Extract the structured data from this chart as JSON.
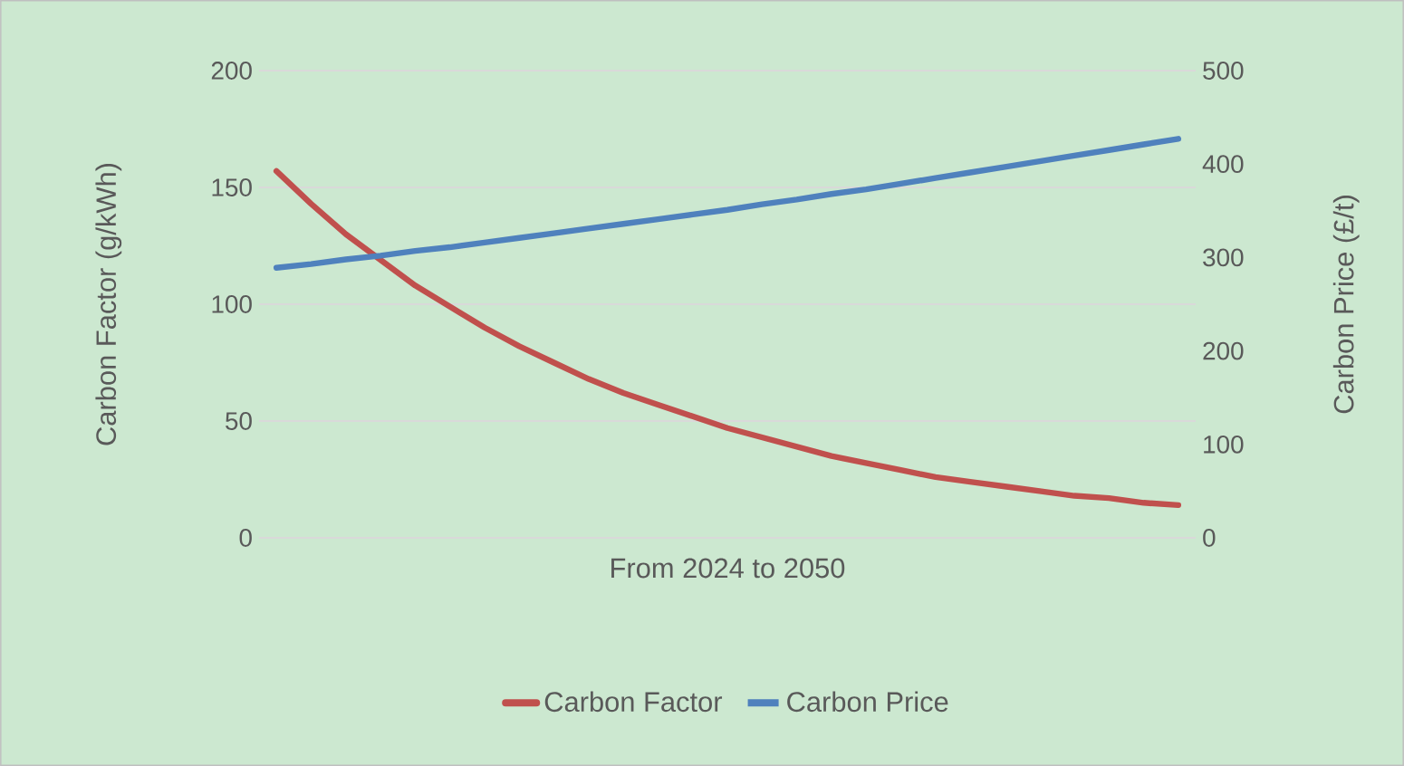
{
  "chart_data": {
    "type": "line",
    "xlabel": "From 2024 to 2050",
    "ylabel": "Carbon Factor (g/kWh)",
    "y2label": "Carbon Price (£/t)",
    "categories": [
      null,
      null,
      null,
      null,
      null,
      null,
      null,
      null,
      null,
      null,
      null,
      null,
      null,
      null,
      null,
      null,
      null,
      null,
      null,
      null,
      null,
      null,
      null,
      null,
      null,
      null,
      null
    ],
    "series": [
      {
        "name": "Carbon Factor",
        "color": "#c0504d",
        "values": [
          157,
          143,
          130,
          119,
          108,
          99,
          90,
          82,
          75,
          68,
          62,
          57,
          52,
          47,
          43,
          39,
          35,
          32,
          29,
          26,
          24,
          22,
          20,
          18,
          17,
          15,
          14
        ]
      },
      {
        "name": "Carbon Price",
        "color": "#4f81bd",
        "axis": "y2",
        "values": [
          289,
          293,
          298,
          302,
          307,
          311,
          316,
          321,
          326,
          331,
          336,
          341,
          346,
          351,
          357,
          362,
          368,
          373,
          379,
          385,
          391,
          397,
          403,
          409,
          415,
          421,
          427
        ]
      }
    ],
    "ylim": [
      0,
      200
    ],
    "yticks": [
      0,
      50,
      100,
      150,
      200
    ],
    "y2lim": [
      0,
      500
    ],
    "y2ticks": [
      0,
      100,
      200,
      300,
      400,
      500
    ],
    "grid": "y",
    "legend": "bottom"
  }
}
